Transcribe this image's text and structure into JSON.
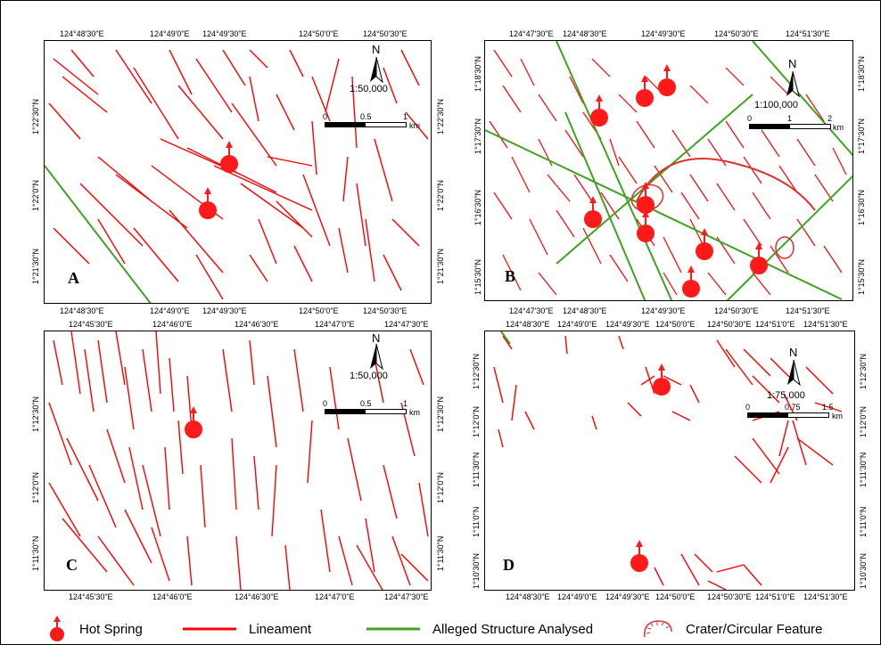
{
  "panels": [
    {
      "id": "A",
      "label": "A",
      "top_ticks": [
        "124°48'30\"E",
        "124°49'0\"E",
        "124°49'30\"E",
        "124°50'0\"E",
        "124°50'30\"E"
      ],
      "bottom_ticks": [
        "124°48'30\"E",
        "124°49'0\"E",
        "124°49'30\"E",
        "124°50'0\"E",
        "124°50'30\"E"
      ],
      "left_ticks": [
        "1°22'30\"N",
        "1°22'0\"N",
        "1°21'30\"N"
      ],
      "right_ticks": [
        "1°22'30\"N",
        "1°22'0\"N",
        "1°21'30\"N"
      ],
      "scale_ratio": "1:50,000",
      "scale_labels": [
        "0",
        "0.5",
        "1"
      ],
      "scale_unit": "km",
      "north_label": "N"
    },
    {
      "id": "B",
      "label": "B",
      "top_ticks": [
        "124°47'30\"E",
        "124°48'30\"E",
        "124°49'30\"E",
        "124°50'30\"E",
        "124°51'30\"E"
      ],
      "bottom_ticks": [
        "124°47'30\"E",
        "124°48'30\"E",
        "124°49'30\"E",
        "124°50'30\"E",
        "124°51'30\"E"
      ],
      "left_ticks": [
        "1°18'30\"N",
        "1°17'30\"N",
        "1°16'30\"N",
        "1°15'30\"N"
      ],
      "right_ticks": [
        "1°18'30\"N",
        "1°17'30\"N",
        "1°16'30\"N",
        "1°15'30\"N"
      ],
      "scale_ratio": "1:100,000",
      "scale_labels": [
        "0",
        "1",
        "2"
      ],
      "scale_unit": "km",
      "north_label": "N"
    },
    {
      "id": "C",
      "label": "C",
      "top_ticks": [
        "124°45'30\"E",
        "124°46'0\"E",
        "124°46'30\"E",
        "124°47'0\"E",
        "124°47'30\"E"
      ],
      "bottom_ticks": [
        "124°45'30\"E",
        "124°46'0\"E",
        "124°46'30\"E",
        "124°47'0\"E",
        "124°47'30\"E"
      ],
      "left_ticks": [
        "1°12'30\"N",
        "1°12'0\"N",
        "1°11'30\"N"
      ],
      "right_ticks": [
        "1°12'30\"N",
        "1°12'0\"N",
        "1°11'30\"N"
      ],
      "scale_ratio": "1:50,000",
      "scale_labels": [
        "0",
        "0.5",
        "1"
      ],
      "scale_unit": "km",
      "north_label": "N"
    },
    {
      "id": "D",
      "label": "D",
      "top_ticks": [
        "124°48'30\"E",
        "124°49'0\"E",
        "124°49'30\"E",
        "124°50'0\"E",
        "124°50'30\"E",
        "124°51'0\"E",
        "124°51'30\"E"
      ],
      "bottom_ticks": [
        "124°48'30\"E",
        "124°49'0\"E",
        "124°49'30\"E",
        "124°50'0\"E",
        "124°50'30\"E",
        "124°51'0\"E",
        "124°51'30\"E"
      ],
      "left_ticks": [
        "1°12'30\"N",
        "1°12'0\"N",
        "1°11'30\"N",
        "1°11'0\"N",
        "1°10'30\"N"
      ],
      "right_ticks": [
        "1°12'30\"N",
        "1°12'0\"N",
        "1°11'30\"N",
        "1°11'0\"N",
        "1°10'30\"N"
      ],
      "scale_ratio": "1:75,000",
      "scale_labels": [
        "0",
        "0.75",
        "1.5"
      ],
      "scale_unit": "km",
      "north_label": "N"
    }
  ],
  "legend": {
    "hot_spring": "Hot Spring",
    "lineament": "Lineament",
    "alleged_structure": "Alleged Structure Analysed",
    "crater": "Crater/Circular Feature"
  },
  "colors": {
    "lineament": "#ff0000",
    "structure": "#3fa31e",
    "hot_spring": "#ff1a1a",
    "crater": "#e03030"
  }
}
